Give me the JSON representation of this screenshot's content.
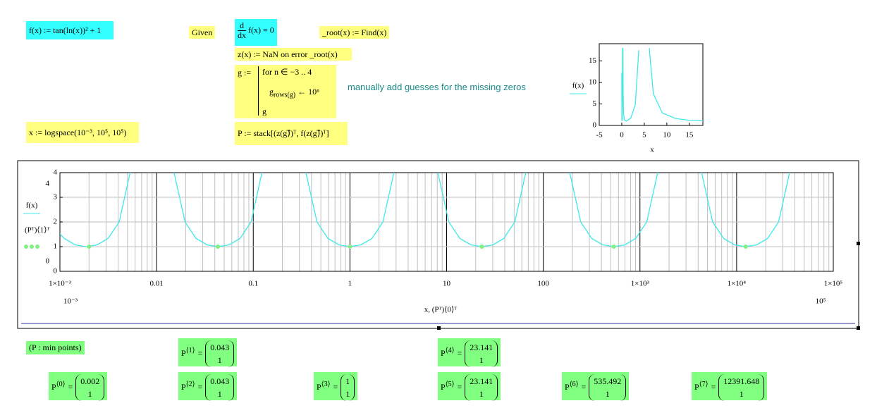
{
  "worksheet": {
    "f_def": "f(x) := tan(ln(x))² + 1",
    "given": "Given",
    "derivative": {
      "top": "d",
      "bottom": "dx",
      "expression": "f(x) = 0"
    },
    "find": "_root(x) := Find(x)",
    "z_def": "z(x) := NaN   on error _root(x)",
    "program": {
      "head": "g :=",
      "loop": "for  n ∈ −3 .. 4",
      "body_var": "g",
      "body_sub": "rows(g)",
      "body_expr": "← 10ⁿ",
      "result": "g"
    },
    "comment": "manually add guesses for the missing zeros",
    "x_def": "x := logspace(10⁻³, 10⁵, 10⁵)",
    "p_def": "P := stack[(z(g)⃗)ᵀ, f(z(g)⃗)ᵀ]",
    "results_title": "(P : min points)",
    "results": [
      {
        "name": "P",
        "index": "⟨0⟩",
        "sign": "=",
        "values": [
          0.002,
          1
        ]
      },
      {
        "name": "P",
        "index": "⟨1⟩",
        "sign": "=",
        "values": [
          0.043,
          1
        ]
      },
      {
        "name": "P",
        "index": "⟨2⟩",
        "sign": "=",
        "values": [
          0.043,
          1
        ]
      },
      {
        "name": "P",
        "index": "⟨3⟩",
        "sign": "=",
        "values": [
          1,
          1
        ]
      },
      {
        "name": "P",
        "index": "⟨4⟩",
        "sign": "=",
        "values": [
          23.141,
          1
        ]
      },
      {
        "name": "P",
        "index": "⟨5⟩",
        "sign": "=",
        "values": [
          23.141,
          1
        ]
      },
      {
        "name": "P",
        "index": "⟨6⟩",
        "sign": "=",
        "values": [
          535.492,
          1
        ]
      },
      {
        "name": "P",
        "index": "⟨7⟩",
        "sign": "=",
        "values": [
          12391.648,
          1
        ]
      }
    ]
  },
  "chart_data": [
    {
      "type": "line",
      "x_label": "x",
      "series": [
        {
          "name": "f(x)",
          "color": "#40e8e8",
          "x": [
            0.012,
            0.02,
            0.04,
            0.08,
            0.1,
            0.14,
            0.164,
            null,
            0.264,
            0.3,
            0.4,
            0.6,
            1,
            2,
            3,
            3.78,
            null,
            6.1,
            7,
            9,
            12,
            15,
            18
          ],
          "values": [
            12.2,
            1.94,
            1.006,
            1.5,
            2.24,
            6.78,
            18,
            null,
            18,
            7.74,
            2.7,
            1.31,
            1,
            1.69,
            4.83,
            17.5,
            null,
            18,
            7.4,
            2.91,
            1.595,
            1.214,
            1.066
          ]
        }
      ],
      "xlim": [
        -5,
        18
      ],
      "ylim": [
        0,
        19
      ],
      "xticks": [
        -5,
        0,
        5,
        10,
        15
      ],
      "yticks": [
        0,
        5,
        10,
        15
      ]
    },
    {
      "type": "line",
      "x_label": "x, (Pᵀ)⟨0⟩ᵀ",
      "log_x": true,
      "grid": true,
      "series": [
        {
          "name": "f(x)",
          "color": "#40e8e8",
          "x": [
            0.001,
            0.00111,
            0.00144,
            0.00187,
            0.00243,
            0.00315,
            0.0041,
            0.00532,
            null,
            0.01516,
            0.0197,
            0.0256,
            0.03326,
            0.04321,
            0.05615,
            0.07295,
            0.09478,
            0.1231,
            null,
            0.3509,
            0.4559,
            0.5924,
            0.7697,
            1,
            1.2993,
            1.6881,
            2.1933,
            2.8497,
            null,
            8.12,
            10.55,
            13.71,
            17.81,
            23.14,
            30.07,
            39.06,
            50.75,
            65.94,
            null,
            187.9,
            244.1,
            317.2,
            412.2,
            535.5,
            695.8,
            904,
            1174.5,
            1526,
            null,
            4348,
            5649,
            7341,
            9538,
            12392,
            16100,
            20918,
            27178,
            35313
          ],
          "values": [
            1.52,
            1.333,
            1.072,
            1,
            1.072,
            1.333,
            2,
            4,
            null,
            4,
            2,
            1.333,
            1.072,
            1,
            1.072,
            1.333,
            2,
            4,
            null,
            4,
            2,
            1.333,
            1.072,
            1,
            1.072,
            1.333,
            2,
            4,
            null,
            4,
            2,
            1.333,
            1.072,
            1,
            1.072,
            1.333,
            2,
            4,
            null,
            4,
            2,
            1.333,
            1.072,
            1,
            1.072,
            1.333,
            2,
            4,
            null,
            4,
            2,
            1.333,
            1.072,
            1,
            1.072,
            1.333,
            2,
            4
          ]
        },
        {
          "name": "(Pᵀ)⟨1⟩ᵀ",
          "type": "scatter",
          "color": "#80f080",
          "x": [
            0.002,
            0.043,
            0.043,
            1,
            23.141,
            23.141,
            535.492,
            12391.648
          ],
          "values": [
            1,
            1,
            1,
            1,
            1,
            1,
            1,
            1
          ]
        }
      ],
      "xlim": [
        0.001,
        100000
      ],
      "xlim_labels": [
        "10⁻³",
        "10⁵"
      ],
      "ylim": [
        0,
        4
      ],
      "xticks": [
        {
          "value": 0.001,
          "label": "1×10⁻³"
        },
        0.01,
        0.1,
        1,
        10,
        100,
        {
          "value": 1000,
          "label": "1×10³"
        },
        {
          "value": 10000,
          "label": "1×10⁴"
        },
        {
          "value": 100000,
          "label": "1×10⁵"
        }
      ],
      "yticks": [
        0,
        1,
        2,
        3,
        4
      ]
    }
  ]
}
